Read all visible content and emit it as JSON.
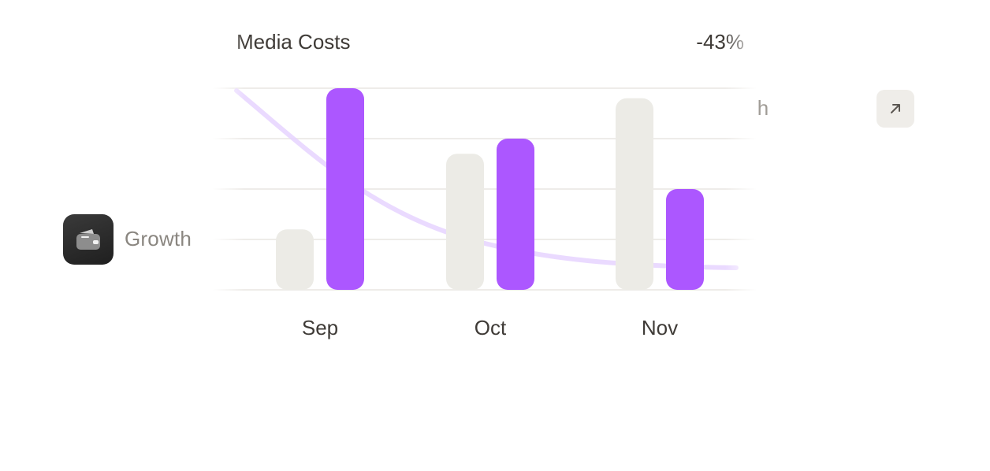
{
  "background": {
    "growth_label": "Growth",
    "growth_icon": "wallet-icon",
    "reach_label": "Reach",
    "arrow_button_icon": "arrow-up-right-icon"
  },
  "colors": {
    "primary_bar": "#ac57ff",
    "secondary_bar": "#ecebe6",
    "trend_line": "#e6d3ff",
    "grid": "#eeece9",
    "text": "#3f3b37"
  },
  "chart_data": {
    "type": "bar",
    "title": "Media Costs",
    "delta": "-43%",
    "categories": [
      "Sep",
      "Oct",
      "Nov"
    ],
    "series": [
      {
        "values": [
          1.2,
          2.7,
          3.8
        ]
      },
      {
        "values": [
          4.0,
          3.0,
          2.0
        ]
      }
    ],
    "trend_line": "decreasing curve",
    "ylim": [
      0,
      4
    ],
    "grid": true,
    "xlabel": "",
    "ylabel": ""
  }
}
